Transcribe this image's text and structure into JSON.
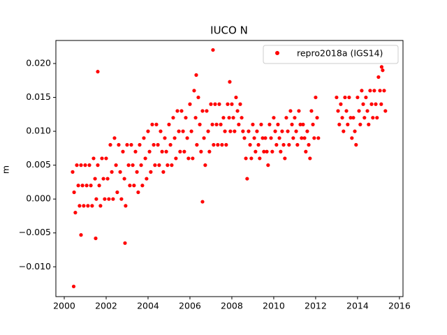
{
  "chart_data": {
    "type": "scatter",
    "title": "IUCO N",
    "ylabel": "m",
    "xlim": [
      1999.6,
      2016.17
    ],
    "ylim": [
      -0.0144,
      0.0234
    ],
    "xticks": [
      2000,
      2002,
      2004,
      2006,
      2008,
      2010,
      2012,
      2014,
      2016
    ],
    "yticks": [
      {
        "value": -0.01,
        "label": "−0.010"
      },
      {
        "value": -0.005,
        "label": "−0.005"
      },
      {
        "value": 0,
        "label": "0.000"
      },
      {
        "value": 0.005,
        "label": "0.005"
      },
      {
        "value": 0.01,
        "label": "0.010"
      },
      {
        "value": 0.015,
        "label": "0.015"
      },
      {
        "value": 0.02,
        "label": "0.020"
      }
    ],
    "legend": "upper right",
    "x": [
      2000.4,
      2000.47,
      2000.53,
      2000.6,
      2000.67,
      2000.73,
      2000.8,
      2000.87,
      2000.93,
      2001.0,
      2001.07,
      2001.13,
      2001.2,
      2001.27,
      2001.33,
      2001.4,
      2001.47,
      2001.53,
      2001.6,
      2001.67,
      2001.73,
      2001.8,
      2001.87,
      2001.93,
      2002.0,
      2002.07,
      2002.13,
      2002.2,
      2002.27,
      2002.33,
      2002.4,
      2002.47,
      2002.53,
      2002.6,
      2002.67,
      2002.73,
      2002.8,
      2002.87,
      2002.93,
      2003.0,
      2003.07,
      2003.13,
      2003.2,
      2003.27,
      2003.33,
      2003.4,
      2003.47,
      2003.53,
      2003.6,
      2003.67,
      2003.73,
      2003.8,
      2003.87,
      2003.93,
      2004.0,
      2004.07,
      2004.13,
      2004.2,
      2004.27,
      2004.33,
      2004.4,
      2004.47,
      2004.53,
      2004.6,
      2004.67,
      2004.73,
      2004.8,
      2004.87,
      2004.93,
      2005.0,
      2005.07,
      2005.13,
      2005.2,
      2005.27,
      2005.33,
      2005.4,
      2005.47,
      2005.53,
      2005.6,
      2005.67,
      2005.73,
      2005.8,
      2005.87,
      2005.93,
      2006.0,
      2006.07,
      2006.13,
      2006.2,
      2006.27,
      2006.33,
      2006.4,
      2006.47,
      2006.53,
      2006.6,
      2006.67,
      2006.73,
      2006.8,
      2006.87,
      2006.93,
      2007.0,
      2007.07,
      2007.13,
      2007.2,
      2007.27,
      2007.33,
      2007.4,
      2007.47,
      2007.53,
      2007.6,
      2007.67,
      2007.73,
      2007.8,
      2007.87,
      2007.93,
      2008.0,
      2008.07,
      2008.13,
      2008.2,
      2008.27,
      2008.33,
      2008.4,
      2008.47,
      2008.53,
      2008.6,
      2008.67,
      2008.73,
      2008.8,
      2008.87,
      2008.93,
      2009.0,
      2009.07,
      2009.13,
      2009.2,
      2009.27,
      2009.33,
      2009.4,
      2009.47,
      2009.53,
      2009.6,
      2009.67,
      2009.73,
      2009.8,
      2009.87,
      2009.93,
      2010.0,
      2010.07,
      2010.13,
      2010.2,
      2010.27,
      2010.33,
      2010.4,
      2010.47,
      2010.53,
      2010.6,
      2010.67,
      2010.73,
      2010.8,
      2010.87,
      2010.93,
      2011.0,
      2011.07,
      2011.13,
      2011.2,
      2011.27,
      2011.33,
      2011.4,
      2011.47,
      2011.53,
      2011.6,
      2011.67,
      2011.73,
      2011.8,
      2011.87,
      2011.93,
      2012.0,
      2012.07,
      2012.13,
      2013.0,
      2013.07,
      2013.13,
      2013.2,
      2013.27,
      2013.33,
      2013.4,
      2013.47,
      2013.53,
      2013.6,
      2013.67,
      2013.73,
      2013.8,
      2013.87,
      2013.93,
      2014.0,
      2014.07,
      2014.13,
      2014.2,
      2014.27,
      2014.33,
      2014.4,
      2014.47,
      2014.53,
      2014.6,
      2014.67,
      2014.73,
      2014.8,
      2014.87,
      2014.93,
      2015.0,
      2015.07,
      2015.13,
      2015.2,
      2015.27,
      2015.33,
      2000.45,
      2001.6,
      2007.1,
      2006.3,
      2002.9,
      2001.5,
      2000.8,
      2006.6,
      2007.9,
      2015.15
    ],
    "series": [
      {
        "name": "repro2018a (IGS14)",
        "color": "#ff0000",
        "values": [
          0.004,
          0.001,
          -0.002,
          0.005,
          0.002,
          -0.001,
          0.005,
          0.002,
          -0.001,
          0.005,
          0.002,
          -0.001,
          0.005,
          0.002,
          -0.001,
          0.006,
          0.003,
          0,
          0.005,
          0.002,
          -0.001,
          0.006,
          0.003,
          0,
          0.006,
          0.003,
          0,
          0.008,
          0.004,
          0,
          0.009,
          0.005,
          0.001,
          0.008,
          0.004,
          0,
          0.007,
          0.003,
          -0.001,
          0.008,
          0.005,
          0.002,
          0.008,
          0.005,
          0.002,
          0.007,
          0.004,
          0.001,
          0.008,
          0.005,
          0.002,
          0.009,
          0.006,
          0.003,
          0.01,
          0.007,
          0.004,
          0.011,
          0.008,
          0.005,
          0.011,
          0.008,
          0.005,
          0.01,
          0.007,
          0.004,
          0.009,
          0.007,
          0.005,
          0.011,
          0.008,
          0.005,
          0.012,
          0.009,
          0.006,
          0.013,
          0.01,
          0.007,
          0.013,
          0.01,
          0.007,
          0.012,
          0.009,
          0.006,
          0.014,
          0.01,
          0.006,
          0.016,
          0.012,
          0.008,
          0.015,
          0.011,
          0.007,
          0.013,
          0.009,
          0.005,
          0.013,
          0.01,
          0.007,
          0.014,
          0.011,
          0.008,
          0.014,
          0.011,
          0.008,
          0.014,
          0.011,
          0.008,
          0.012,
          0.01,
          0.008,
          0.014,
          0.012,
          0.01,
          0.014,
          0.012,
          0.01,
          0.015,
          0.013,
          0.011,
          0.014,
          0.012,
          0.01,
          0.009,
          0.006,
          0.003,
          0.01,
          0.008,
          0.006,
          0.011,
          0.009,
          0.007,
          0.01,
          0.008,
          0.006,
          0.011,
          0.009,
          0.007,
          0.009,
          0.007,
          0.005,
          0.011,
          0.009,
          0.007,
          0.012,
          0.01,
          0.008,
          0.011,
          0.009,
          0.007,
          0.01,
          0.008,
          0.006,
          0.012,
          0.01,
          0.008,
          0.013,
          0.011,
          0.009,
          0.012,
          0.01,
          0.008,
          0.013,
          0.011,
          0.009,
          0.011,
          0.009,
          0.007,
          0.01,
          0.008,
          0.006,
          0.013,
          0.011,
          0.009,
          0.015,
          0.012,
          0.009,
          0.015,
          0.013,
          0.011,
          0.014,
          0.012,
          0.01,
          0.015,
          0.013,
          0.011,
          0.015,
          0.012,
          0.009,
          0.012,
          0.01,
          0.008,
          0.015,
          0.013,
          0.011,
          0.016,
          0.014,
          0.012,
          0.015,
          0.013,
          0.011,
          0.016,
          0.014,
          0.012,
          0.016,
          0.014,
          0.012,
          0.018,
          0.016,
          0.014,
          0.019,
          0.016,
          0.013,
          -0.0129,
          0.0188,
          0.022,
          0.0183,
          -0.0065,
          -0.0058,
          -0.0053,
          -0.0004,
          0.0173,
          0.0195
        ]
      }
    ]
  }
}
